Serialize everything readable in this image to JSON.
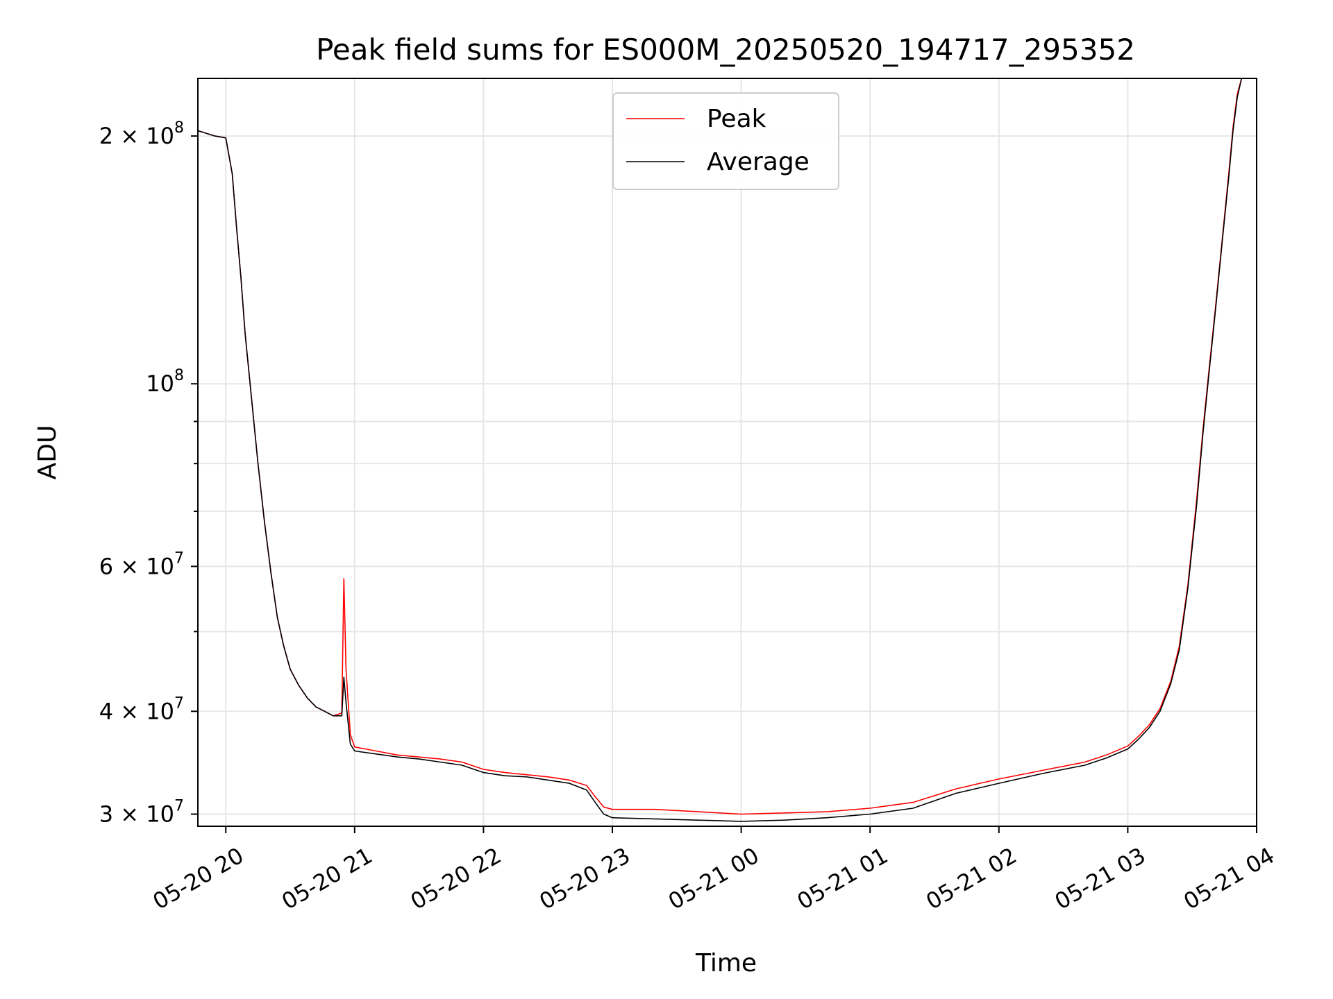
{
  "chart_data": {
    "type": "line",
    "title": "Peak field sums for ES000M_20250520_194717_295352",
    "xlabel": "Time",
    "ylabel": "ADU",
    "y_scale": "log",
    "ylim": [
      29000000,
      235000000
    ],
    "xlim": [
      "2025-05-20 19:47",
      "2025-05-21 04:00"
    ],
    "grid": true,
    "legend_position": "top-center",
    "x_ticks": [
      {
        "value": "2025-05-20 20:00",
        "label": "05-20 20"
      },
      {
        "value": "2025-05-20 21:00",
        "label": "05-20 21"
      },
      {
        "value": "2025-05-20 22:00",
        "label": "05-20 22"
      },
      {
        "value": "2025-05-20 23:00",
        "label": "05-20 23"
      },
      {
        "value": "2025-05-21 00:00",
        "label": "05-21 00"
      },
      {
        "value": "2025-05-21 01:00",
        "label": "05-21 01"
      },
      {
        "value": "2025-05-21 02:00",
        "label": "05-21 02"
      },
      {
        "value": "2025-05-21 03:00",
        "label": "05-21 03"
      },
      {
        "value": "2025-05-21 04:00",
        "label": "05-21 04"
      }
    ],
    "y_ticks": [
      {
        "value": 30000000,
        "mantissa": "3 × 10",
        "exp": "7"
      },
      {
        "value": 40000000,
        "mantissa": "4 × 10",
        "exp": "7"
      },
      {
        "value": 60000000,
        "mantissa": "6 × 10",
        "exp": "7"
      },
      {
        "value": 100000000,
        "mantissa": "10",
        "exp": "8"
      },
      {
        "value": 200000000,
        "mantissa": "2 × 10",
        "exp": "8"
      }
    ],
    "y_minor_ticks": [
      50000000,
      70000000,
      80000000,
      90000000
    ],
    "x": [
      "2025-05-20 19:47",
      "2025-05-20 19:55",
      "2025-05-20 20:00",
      "2025-05-20 20:03",
      "2025-05-20 20:05",
      "2025-05-20 20:07",
      "2025-05-20 20:09",
      "2025-05-20 20:12",
      "2025-05-20 20:15",
      "2025-05-20 20:18",
      "2025-05-20 20:21",
      "2025-05-20 20:24",
      "2025-05-20 20:27",
      "2025-05-20 20:30",
      "2025-05-20 20:34",
      "2025-05-20 20:38",
      "2025-05-20 20:42",
      "2025-05-20 20:46",
      "2025-05-20 20:50",
      "2025-05-20 20:54",
      "2025-05-20 20:55",
      "2025-05-20 20:56",
      "2025-05-20 20:58",
      "2025-05-20 21:00",
      "2025-05-20 21:10",
      "2025-05-20 21:20",
      "2025-05-20 21:30",
      "2025-05-20 21:40",
      "2025-05-20 21:50",
      "2025-05-20 22:00",
      "2025-05-20 22:10",
      "2025-05-20 22:20",
      "2025-05-20 22:30",
      "2025-05-20 22:40",
      "2025-05-20 22:48",
      "2025-05-20 22:52",
      "2025-05-20 22:56",
      "2025-05-20 23:00",
      "2025-05-20 23:20",
      "2025-05-20 23:40",
      "2025-05-21 00:00",
      "2025-05-21 00:20",
      "2025-05-21 00:40",
      "2025-05-21 01:00",
      "2025-05-21 01:20",
      "2025-05-21 01:40",
      "2025-05-21 02:00",
      "2025-05-21 02:20",
      "2025-05-21 02:40",
      "2025-05-21 02:50",
      "2025-05-21 03:00",
      "2025-05-21 03:05",
      "2025-05-21 03:10",
      "2025-05-21 03:15",
      "2025-05-21 03:20",
      "2025-05-21 03:24",
      "2025-05-21 03:28",
      "2025-05-21 03:32",
      "2025-05-21 03:35",
      "2025-05-21 03:38",
      "2025-05-21 03:41",
      "2025-05-21 03:44",
      "2025-05-21 03:47",
      "2025-05-21 03:49",
      "2025-05-21 03:51",
      "2025-05-21 03:53",
      "2025-05-21 04:00"
    ],
    "series": [
      {
        "name": "Peak",
        "color": "#ff0000",
        "values": [
          203000000,
          200000000,
          199000000,
          180000000,
          155000000,
          135000000,
          115000000,
          96000000,
          80000000,
          68000000,
          59000000,
          52000000,
          48000000,
          45000000,
          43000000,
          41500000,
          40500000,
          40000000,
          39500000,
          39800000,
          58000000,
          45000000,
          37500000,
          36200000,
          35800000,
          35400000,
          35200000,
          35000000,
          34700000,
          34000000,
          33700000,
          33500000,
          33300000,
          33000000,
          32500000,
          31500000,
          30600000,
          30400000,
          30400000,
          30200000,
          30000000,
          30100000,
          30200000,
          30500000,
          31000000,
          32200000,
          33100000,
          33900000,
          34700000,
          35400000,
          36300000,
          37300000,
          38500000,
          40300000,
          43500000,
          48000000,
          57000000,
          72000000,
          88000000,
          105000000,
          125000000,
          150000000,
          180000000,
          205000000,
          225000000,
          235000000,
          235000000
        ]
      },
      {
        "name": "Average",
        "color": "#000000",
        "values": [
          203000000,
          200000000,
          199000000,
          180000000,
          155000000,
          135000000,
          115000000,
          96000000,
          80000000,
          68000000,
          59000000,
          52000000,
          48000000,
          45000000,
          43000000,
          41500000,
          40500000,
          40000000,
          39500000,
          39500000,
          44000000,
          41000000,
          36500000,
          35800000,
          35500000,
          35200000,
          35000000,
          34700000,
          34400000,
          33700000,
          33400000,
          33300000,
          33000000,
          32700000,
          32100000,
          31000000,
          30000000,
          29700000,
          29600000,
          29500000,
          29400000,
          29500000,
          29700000,
          30000000,
          30500000,
          31800000,
          32700000,
          33600000,
          34400000,
          35100000,
          36000000,
          37000000,
          38200000,
          40000000,
          43200000,
          47500000,
          56500000,
          71000000,
          87000000,
          104000000,
          124000000,
          149000000,
          178000000,
          203000000,
          223000000,
          235000000,
          235000000
        ]
      }
    ]
  }
}
